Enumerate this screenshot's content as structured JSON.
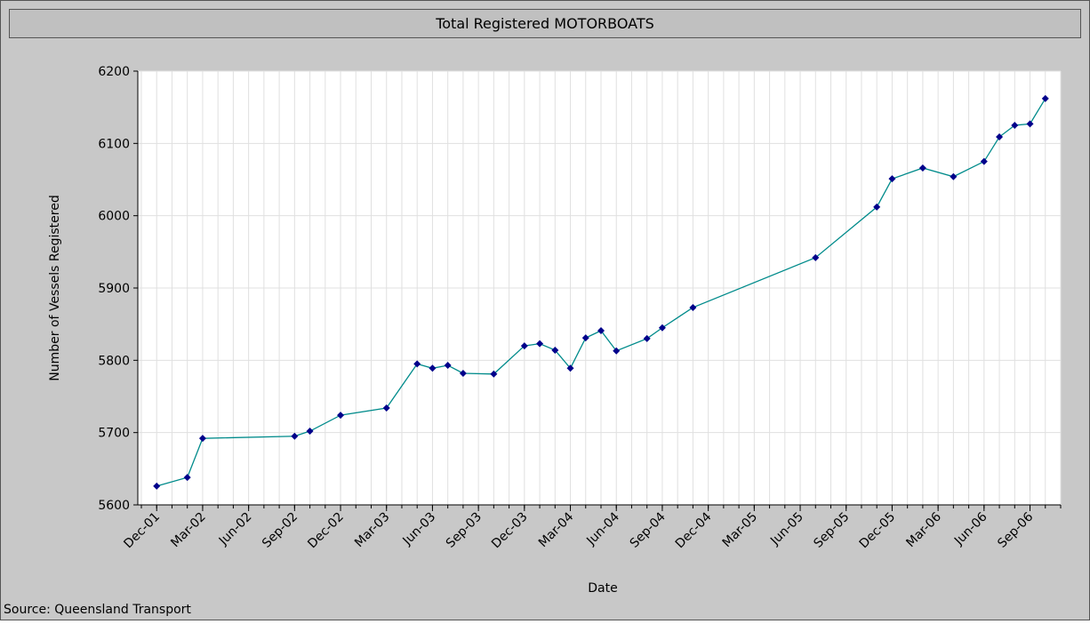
{
  "chart_data": {
    "type": "line",
    "title": "Total Registered MOTORBOATS",
    "x_label": "Date",
    "y_label": "Number of Vessels Registered",
    "source": "Source: Queensland Transport",
    "x": [
      "2001-12",
      "2002-02",
      "2002-03",
      "2002-09",
      "2002-10",
      "2002-12",
      "2003-03",
      "2003-05",
      "2003-06",
      "2003-07",
      "2003-08",
      "2003-10",
      "2003-12",
      "2004-01",
      "2004-02",
      "2004-03",
      "2004-04",
      "2004-05",
      "2004-06",
      "2004-08",
      "2004-09",
      "2004-11",
      "2005-07",
      "2005-11",
      "2005-12",
      "2006-02",
      "2006-04",
      "2006-06",
      "2006-07",
      "2006-08",
      "2006-09",
      "2006-10"
    ],
    "series": [
      {
        "name": "Total Registered MOTORBOATS",
        "color": "#008b8b",
        "marker_color": "#00008b",
        "values": [
          5626,
          5638,
          5692,
          5695,
          5702,
          5724,
          5734,
          5795,
          5789,
          5793,
          5782,
          5781,
          5820,
          5823,
          5814,
          5789,
          5831,
          5841,
          5813,
          5830,
          5845,
          5873,
          5942,
          6012,
          6051,
          6066,
          6054,
          6075,
          6109,
          6125,
          6127,
          6162
        ]
      }
    ],
    "xlim": [
      "2001-11",
      "2006-11"
    ],
    "xticks": [
      {
        "value": "2001-12",
        "label": "Dec-01"
      },
      {
        "value": "2002-03",
        "label": "Mar-02"
      },
      {
        "value": "2002-06",
        "label": "Jun-02"
      },
      {
        "value": "2002-09",
        "label": "Sep-02"
      },
      {
        "value": "2002-12",
        "label": "Dec-02"
      },
      {
        "value": "2003-03",
        "label": "Mar-03"
      },
      {
        "value": "2003-06",
        "label": "Jun-03"
      },
      {
        "value": "2003-09",
        "label": "Sep-03"
      },
      {
        "value": "2003-12",
        "label": "Dec-03"
      },
      {
        "value": "2004-03",
        "label": "Mar-04"
      },
      {
        "value": "2004-06",
        "label": "Jun-04"
      },
      {
        "value": "2004-09",
        "label": "Sep-04"
      },
      {
        "value": "2004-12",
        "label": "Dec-04"
      },
      {
        "value": "2005-03",
        "label": "Mar-05"
      },
      {
        "value": "2005-06",
        "label": "Jun-05"
      },
      {
        "value": "2005-09",
        "label": "Sep-05"
      },
      {
        "value": "2005-12",
        "label": "Dec-05"
      },
      {
        "value": "2006-03",
        "label": "Mar-06"
      },
      {
        "value": "2006-06",
        "label": "Jun-06"
      },
      {
        "value": "2006-09",
        "label": "Sep-06"
      }
    ],
    "ylim": [
      5600,
      6200
    ],
    "yticks": [
      5600,
      5700,
      5800,
      5900,
      6000,
      6100,
      6200
    ],
    "grid": true,
    "minor_grid": "monthly"
  }
}
